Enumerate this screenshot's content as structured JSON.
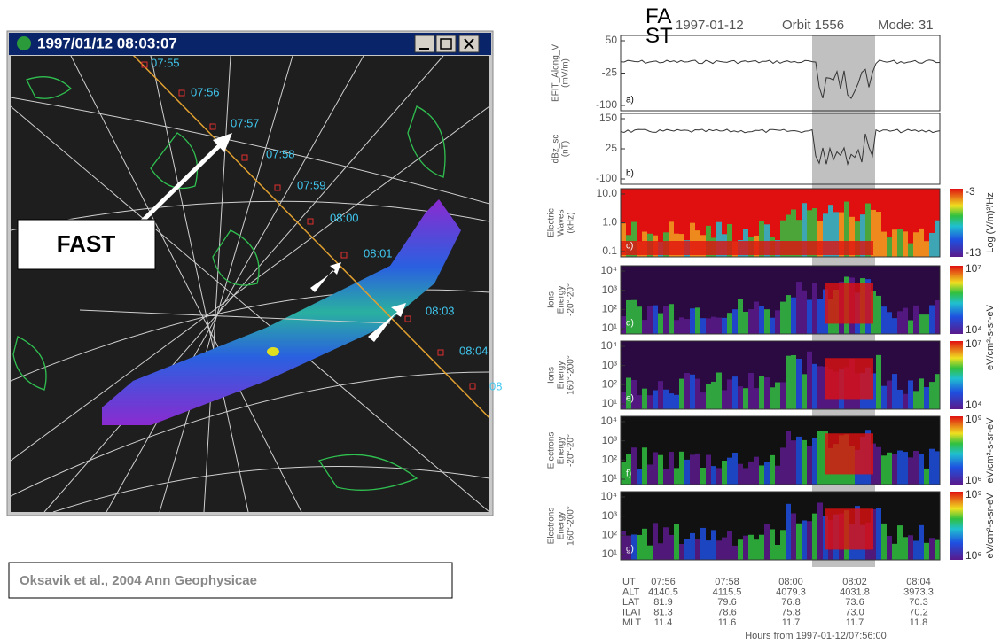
{
  "window": {
    "title": "1997/01/12 08:03:07",
    "orbit_labels": [
      "07:55",
      "07:56",
      "07:57",
      "07:58",
      "07:59",
      "08:00",
      "08:01",
      "08:03",
      "08:04",
      "08"
    ],
    "annotation": "FAST",
    "caption": "Oksavik et al., 2004 Ann Geophysicae"
  },
  "plot": {
    "header": {
      "spacecraft": "FAST",
      "date": "1997-01-12",
      "orbit": "Orbit 1556",
      "mode": "Mode: 31"
    },
    "panels": [
      {
        "ylabel": [
          "EFIT_Along_V",
          "(mV/m)"
        ],
        "letter": "a)",
        "yticks": [
          "50",
          "-25",
          "-100"
        ],
        "cbar": [],
        "unit": ""
      },
      {
        "ylabel": [
          "dBz_sc",
          "(nT)"
        ],
        "letter": "b)",
        "yticks": [
          "150",
          "25",
          "-100"
        ],
        "cbar": [],
        "unit": ""
      },
      {
        "ylabel": [
          "Electric",
          "Waves",
          "(kHz)"
        ],
        "letter": "c)",
        "yticks": [
          "10.0",
          "1.0",
          "0.1"
        ],
        "cbar": [
          "-3",
          "-13"
        ],
        "unit": "Log (V/m)²/Hz"
      },
      {
        "ylabel": [
          "Ions",
          "Energy",
          "-20°-20°"
        ],
        "letter": "d)",
        "yticks": [
          "10⁴",
          "10³",
          "10²",
          "10¹"
        ],
        "cbar": [
          "10⁷",
          "10⁴"
        ],
        "unit": ""
      },
      {
        "ylabel": [
          "Ions",
          "Energy",
          "160°-200°"
        ],
        "letter": "e)",
        "yticks": [
          "10⁴",
          "10³",
          "10²",
          "10¹"
        ],
        "cbar": [
          "10⁷",
          "10⁴"
        ],
        "unit": "eV/cm²-s-sr-eV"
      },
      {
        "ylabel": [
          "Electrons",
          "Energy",
          "-20°-20°"
        ],
        "letter": "f)",
        "yticks": [
          "10⁴",
          "10³",
          "10²",
          "10¹"
        ],
        "cbar": [
          "10⁹",
          "10⁶"
        ],
        "unit": "eV/cm²-s-sr-eV"
      },
      {
        "ylabel": [
          "Electrons",
          "Energy",
          "160°-200°"
        ],
        "letter": "g)",
        "yticks": [
          "10⁴",
          "10³",
          "10²",
          "10¹"
        ],
        "cbar": [
          "10⁹",
          "10⁶"
        ],
        "unit": "eV/cm²-s-sr-eV"
      }
    ],
    "table": {
      "row_labels": [
        "UT",
        "ALT",
        "LAT",
        "ILAT",
        "MLT"
      ],
      "columns": [
        [
          "07:56",
          "4140.5",
          "81.9",
          "81.3",
          "11.4"
        ],
        [
          "07:58",
          "4115.5",
          "79.6",
          "78.6",
          "11.6"
        ],
        [
          "08:00",
          "4079.3",
          "76.8",
          "75.8",
          "11.7"
        ],
        [
          "08:02",
          "4031.8",
          "73.6",
          "73.0",
          "11.7"
        ],
        [
          "08:04",
          "3973.3",
          "70.3",
          "70.2",
          "11.8"
        ]
      ]
    },
    "footer": "Hours from 1997-01-12/07:56:00"
  }
}
